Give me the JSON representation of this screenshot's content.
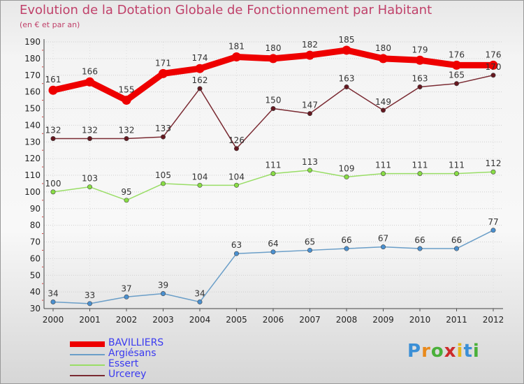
{
  "chart_data": {
    "type": "line",
    "title": "Evolution de la Dotation Globale de Fonctionnement par Habitant",
    "subtitle": "(en € et par an)",
    "xlabel": "",
    "ylabel": "",
    "categories": [
      "2000",
      "2001",
      "2002",
      "2003",
      "2004",
      "2005",
      "2006",
      "2007",
      "2008",
      "2009",
      "2010",
      "2011",
      "2012"
    ],
    "ylim": [
      30,
      190
    ],
    "yticks": [
      30,
      40,
      50,
      60,
      70,
      80,
      90,
      100,
      110,
      120,
      130,
      140,
      150,
      160,
      170,
      180,
      190
    ],
    "grid": true,
    "legend_position": "bottom-left",
    "series": [
      {
        "name": "BAVILLIERS",
        "color": "#ee0000",
        "marker": "#ee0000",
        "emphasis": true,
        "values": [
          161,
          166,
          155,
          171,
          174,
          181,
          180,
          182,
          185,
          180,
          179,
          176,
          176
        ]
      },
      {
        "name": "Argiésans",
        "color": "#6a9ec8",
        "marker": "#4a90d0",
        "emphasis": false,
        "values": [
          34,
          33,
          37,
          39,
          34,
          63,
          64,
          65,
          66,
          67,
          66,
          66,
          77
        ]
      },
      {
        "name": "Essert",
        "color": "#99dd66",
        "marker": "#88dd44",
        "emphasis": false,
        "values": [
          100,
          103,
          95,
          105,
          104,
          104,
          111,
          113,
          109,
          111,
          111,
          111,
          112
        ]
      },
      {
        "name": "Urcerey",
        "color": "#7a2a32",
        "marker": "#661820",
        "emphasis": false,
        "values": [
          132,
          132,
          132,
          133,
          162,
          126,
          150,
          147,
          163,
          149,
          163,
          165,
          170
        ]
      }
    ]
  },
  "logo": {
    "letters": [
      "P",
      "r",
      "o",
      "x",
      "i",
      "t",
      "i"
    ],
    "colors": [
      "#3b8fd6",
      "#e98a1c",
      "#4ab03a",
      "#cc2b2b",
      "#e6b81c",
      "#3b8fd6",
      "#4ab03a"
    ]
  }
}
